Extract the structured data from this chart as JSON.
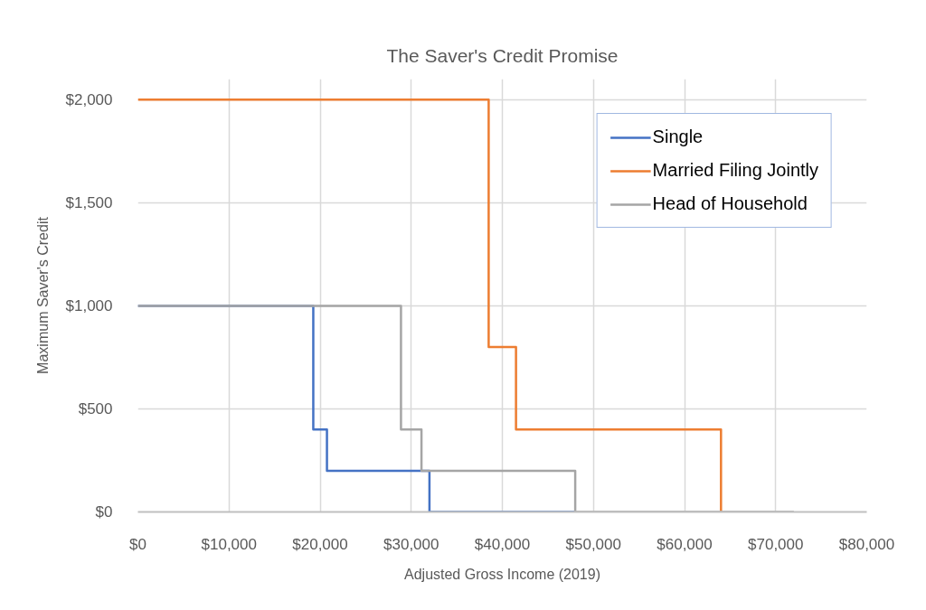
{
  "chart_data": {
    "type": "step",
    "title": "The Saver's Credit Promise",
    "xlabel": "Adjusted Gross Income (2019)",
    "ylabel": "Maximum Saver's Credit",
    "series": [
      {
        "name": "Single",
        "color": "#4472c4",
        "x": [
          0,
          19250,
          20750,
          32000,
          48000
        ],
        "values": [
          1000,
          400,
          200,
          0,
          0
        ]
      },
      {
        "name": "Married Filing Jointly",
        "color": "#ed7d31",
        "x": [
          0,
          38500,
          41500,
          64000
        ],
        "values": [
          2000,
          800,
          400,
          0
        ]
      },
      {
        "name": "Head of Household",
        "color": "#a5a5a5",
        "x": [
          0,
          28875,
          31125,
          48000,
          72000
        ],
        "values": [
          1000,
          400,
          200,
          0,
          0
        ]
      }
    ],
    "xlim": [
      0,
      80000
    ],
    "ylim": [
      0,
      2100
    ],
    "xticks": [
      {
        "value": 0,
        "label": "$0"
      },
      {
        "value": 10000,
        "label": "$10,000"
      },
      {
        "value": 20000,
        "label": "$20,000"
      },
      {
        "value": 30000,
        "label": "$30,000"
      },
      {
        "value": 40000,
        "label": "$40,000"
      },
      {
        "value": 50000,
        "label": "$50,000"
      },
      {
        "value": 60000,
        "label": "$60,000"
      },
      {
        "value": 70000,
        "label": "$70,000"
      },
      {
        "value": 80000,
        "label": "$80,000"
      }
    ],
    "yticks": [
      {
        "value": 0,
        "label": "$0"
      },
      {
        "value": 500,
        "label": "$500"
      },
      {
        "value": 1000,
        "label": "$1,000"
      },
      {
        "value": 1500,
        "label": "$1,500"
      },
      {
        "value": 2000,
        "label": "$2,000"
      }
    ],
    "grid": true,
    "legend": "top right"
  }
}
